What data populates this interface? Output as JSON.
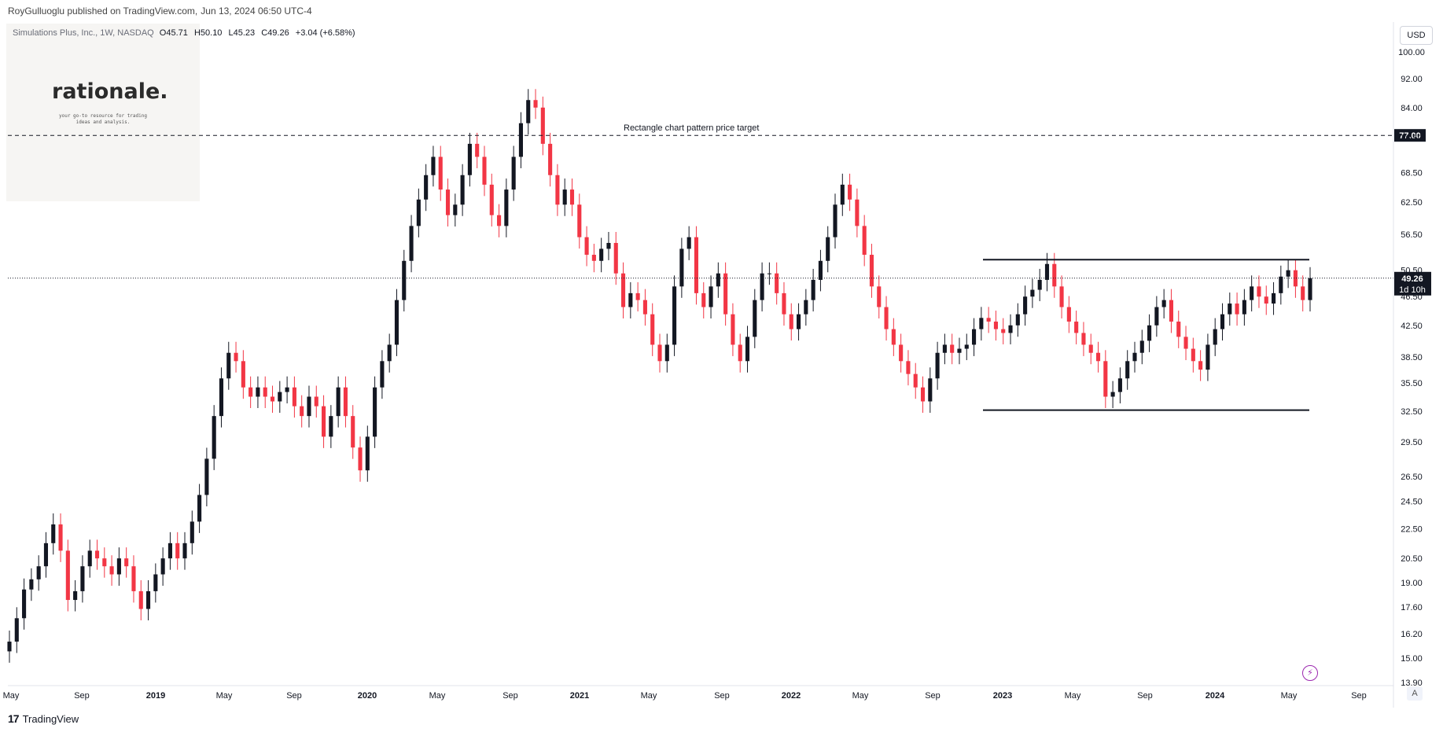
{
  "header": {
    "publisher": "RoyGulluoglu published on TradingView.com,",
    "date": "Jun 13, 2024 06:50 UTC-4"
  },
  "legend": {
    "symbol": "Simulations Plus, Inc., 1W, NASDAQ",
    "open": "O45.71",
    "high": "H50.10",
    "low": "L45.23",
    "close": "C49.26",
    "change": "+3.04 (+6.58%)"
  },
  "watermark": {
    "brand": "rationale.",
    "tagline_line1": "your go-to resource for trading",
    "tagline_line2": "ideas and analysis."
  },
  "footer": {
    "brand": "TradingView"
  },
  "price_axis": {
    "currency_label": "USD",
    "auto_label": "A"
  },
  "chart_data": {
    "type": "candlestick",
    "scale": "log",
    "ylim": [
      13.5,
      104
    ],
    "y_ticks": [
      "100.00",
      "92.00",
      "84.00",
      "76.50",
      "68.50",
      "62.50",
      "56.50",
      "50.50",
      "46.50",
      "42.50",
      "38.50",
      "35.50",
      "32.50",
      "29.50",
      "26.50",
      "24.50",
      "22.50",
      "20.50",
      "19.00",
      "17.60",
      "16.20",
      "15.00",
      "13.90"
    ],
    "x_ticks": [
      "May",
      "Sep",
      "2019",
      "May",
      "Sep",
      "2020",
      "May",
      "Sep",
      "2021",
      "May",
      "Sep",
      "2022",
      "May",
      "Sep",
      "2023",
      "May",
      "Sep",
      "2024",
      "May",
      "Sep"
    ],
    "current_price_label": "49.26",
    "countdown_label": "1d 10h",
    "target_price_label": "77.00",
    "annotation_text": "Rectangle chart pattern price target",
    "target_price": 77.0,
    "current_price": 49.26,
    "rectangle_top": 52.2,
    "rectangle_bottom": 32.6,
    "series_close": [
      15.8,
      17.0,
      18.6,
      19.2,
      20.0,
      21.5,
      22.8,
      21.0,
      18.0,
      18.5,
      20.0,
      21.0,
      20.5,
      20.0,
      19.5,
      20.5,
      20.0,
      18.5,
      17.5,
      18.5,
      19.5,
      20.5,
      21.5,
      20.5,
      21.5,
      23.0,
      25.0,
      28.0,
      32.0,
      36.0,
      39.0,
      38.0,
      35.0,
      34.0,
      35.0,
      34.0,
      33.5,
      34.5,
      35.0,
      33.0,
      32.0,
      34.0,
      33.0,
      30.0,
      32.0,
      35.0,
      32.0,
      29.0,
      27.0,
      30.0,
      35.0,
      38.0,
      40.0,
      46.0,
      52.0,
      58.0,
      63.0,
      68.0,
      72.0,
      65.0,
      60.0,
      62.0,
      68.0,
      75.0,
      72.0,
      66.0,
      60.0,
      58.0,
      65.0,
      72.0,
      80.0,
      86.0,
      84.0,
      75.0,
      68.0,
      62.0,
      65.0,
      62.0,
      56.0,
      53.0,
      52.0,
      54.0,
      55.0,
      50.0,
      45.0,
      47.0,
      46.0,
      44.0,
      40.0,
      38.0,
      40.0,
      48.0,
      54.0,
      56.0,
      47.0,
      45.0,
      48.0,
      50.0,
      44.0,
      40.0,
      38.0,
      41.0,
      46.0,
      50.0,
      50.0,
      47.0,
      44.0,
      42.0,
      44.0,
      46.0,
      49.0,
      52.0,
      56.0,
      62.0,
      66.0,
      63.0,
      58.0,
      53.0,
      48.0,
      45.0,
      42.0,
      40.0,
      38.0,
      36.5,
      35.0,
      33.5,
      36.0,
      39.0,
      40.0,
      39.0,
      39.5,
      40.0,
      42.0,
      43.5,
      43.0,
      42.0,
      41.5,
      42.5,
      44.0,
      46.5,
      47.5,
      49.0,
      51.5,
      48.0,
      45.0,
      43.0,
      41.5,
      40.0,
      39.0,
      38.0,
      34.0,
      34.5,
      36.0,
      38.0,
      39.0,
      40.5,
      42.5,
      45.0,
      46.0,
      43.0,
      41.0,
      39.5,
      38.0,
      37.0,
      40.0,
      42.0,
      44.0,
      45.5,
      44.0,
      46.0,
      48.0,
      46.5,
      45.5,
      47.0,
      49.5,
      50.5,
      48.0,
      46.0,
      49.26
    ]
  }
}
